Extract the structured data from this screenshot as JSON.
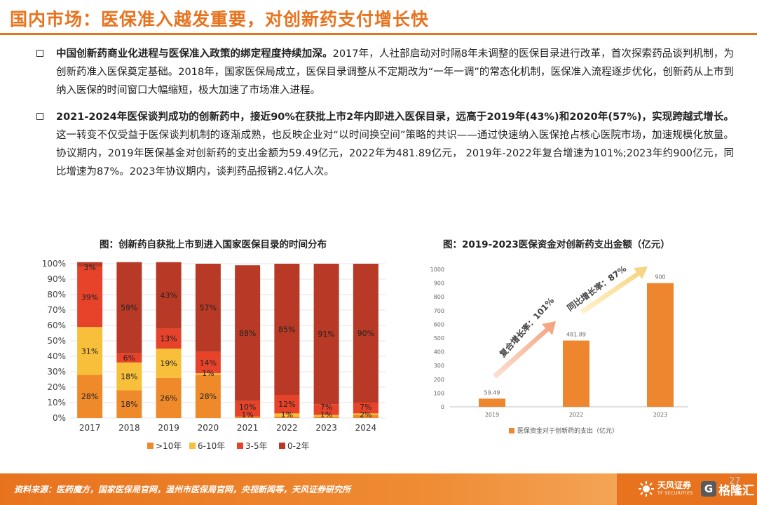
{
  "title": "国内市场：医保准入越发重要，对创新药支付增长快",
  "bullets": [
    {
      "bold": "中国创新药商业化进程与医保准入政策的绑定程度持续加深。",
      "text": "2017年，人社部启动对时隔8年未调整的医保目录进行改革，首次探索药品谈判机制，为创新药准入医保奠定基础。2018年，国家医保局成立，医保目录调整从不定期改为“一年一调”的常态化机制，医保准入流程逐步优化，创新药从上市到纳入医保的时间窗口大幅缩短，极大加速了市场准入进程。"
    },
    {
      "bold": "2021-2024年医保谈判成功的创新药中，接近90%在获批上市2年内即进入医保目录，远高于2019年(43%)和2020年(57%)，实现跨越式增长。",
      "text": "这一转变不仅受益于医保谈判机制的逐渐成熟，也反映企业对“以时间换空间”策略的共识——通过快速纳入医保抢占核心医院市场，加速规模化放量。协议期内，2019年医保基金对创新药的支出金额为59.49亿元，2022年为481.89亿元， 2019年-2022年复合增速为101%;2023年约900亿元，同比增速为87%。2023年协议期内，谈判药品报销2.4亿人次。"
    }
  ],
  "chart_titles": {
    "chart1": "图：创新药自获批上市到进入国家医保目录的时间分布",
    "chart2": "图：2019-2023医保资金对创新药支出金额（亿元）"
  },
  "chart_data": [
    {
      "type": "bar",
      "stacked": true,
      "title": "图：创新药自获批上市到进入国家医保目录的时间分布",
      "categories": [
        "2017",
        "2018",
        "2019",
        "2020",
        "2021",
        "2022",
        "2023",
        "2024"
      ],
      "series": [
        {
          "name": ">10年",
          "color": "#ee8a2a",
          "values": [
            28,
            18,
            26,
            28,
            1,
            1,
            1,
            2
          ],
          "labels": [
            "28%",
            "18%",
            "26%",
            "28%",
            "1%",
            "1%",
            "1%",
            "2%"
          ]
        },
        {
          "name": "6-10年",
          "color": "#f8c03a",
          "values": [
            31,
            18,
            19,
            1,
            0,
            2,
            1,
            1
          ],
          "labels": [
            "31%",
            "18%",
            "19%",
            "1%",
            "",
            "",
            "",
            ""
          ]
        },
        {
          "name": "3-5年",
          "color": "#e6432a",
          "values": [
            39,
            6,
            13,
            14,
            10,
            12,
            7,
            7
          ],
          "labels": [
            "39%",
            "6%",
            "13%",
            "14%",
            "10%",
            "12%",
            "7%",
            "7%"
          ]
        },
        {
          "name": "0-2年",
          "color": "#b83a26",
          "values": [
            3,
            59,
            43,
            57,
            88,
            85,
            91,
            90
          ],
          "labels": [
            "3%",
            "59%",
            "43%",
            "57%",
            "88%",
            "85%",
            "91%",
            "90%"
          ]
        }
      ],
      "y_ticks": [
        "0%",
        "10%",
        "20%",
        "30%",
        "40%",
        "50%",
        "60%",
        "70%",
        "80%",
        "90%",
        "100%"
      ],
      "ylim": [
        0,
        100
      ],
      "legend": "bottom"
    },
    {
      "type": "bar",
      "title": "图：2019-2023医保资金对创新药支出金额（亿元）",
      "categories": [
        "2019",
        "2022",
        "2023"
      ],
      "values": [
        59.49,
        481.89,
        900
      ],
      "value_labels": [
        "59.49",
        "481.89",
        "900"
      ],
      "y_ticks": [
        "0",
        "100",
        "200",
        "300",
        "400",
        "500",
        "600",
        "700",
        "800",
        "900",
        "1000"
      ],
      "ylim": [
        0,
        1000
      ],
      "color": "#ee8630",
      "legend_label": "医保资金对于创新药的支出（亿元）",
      "legend": "bottom",
      "annotations": [
        "复合增长率：101%",
        "同比增长率：87%"
      ]
    }
  ],
  "footer": {
    "source": "资料来源：医药魔方，国家医保局官网，温州市医保局官网，央视新闻等，天风证券研究所",
    "logo_name": "天风证券",
    "logo_en": "TF SECURITIES",
    "logo2_glyph": "G",
    "logo2_text": "格隆汇",
    "page": "27"
  },
  "colors": {
    "accent": "#e8731e"
  }
}
